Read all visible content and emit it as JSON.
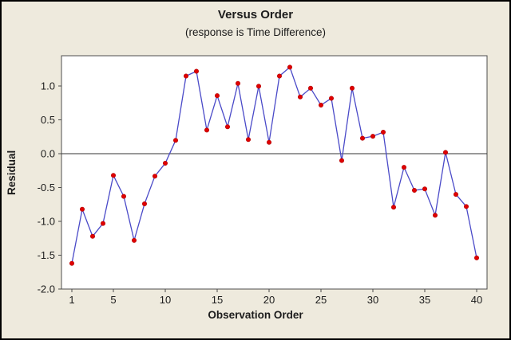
{
  "colors": {
    "page_bg": "#eeeadd",
    "plot_bg": "#ffffff",
    "plot_frame": "#4d4d4d",
    "series_line": "#4a4ac8",
    "marker_fill": "#e00000",
    "marker_edge": "#b00000",
    "reference_line": "#333333",
    "tick": "#4d4d4d",
    "text": "#1c1c1c",
    "outer_border": "#000000"
  },
  "chart_data": {
    "type": "line",
    "title": "Versus Order",
    "subtitle": "(response is Time Difference)",
    "xlabel": "Observation Order",
    "ylabel": "Residual",
    "x": [
      1,
      2,
      3,
      4,
      5,
      6,
      7,
      8,
      9,
      10,
      11,
      12,
      13,
      14,
      15,
      16,
      17,
      18,
      19,
      20,
      21,
      22,
      23,
      24,
      25,
      26,
      27,
      28,
      29,
      30,
      31,
      32,
      33,
      34,
      35,
      36,
      37,
      38,
      39,
      40
    ],
    "y": [
      -1.62,
      -0.82,
      -1.22,
      -1.03,
      -0.32,
      -0.63,
      -1.28,
      -0.74,
      -0.33,
      -0.14,
      0.2,
      1.15,
      1.22,
      0.35,
      0.86,
      0.4,
      1.04,
      0.21,
      1.0,
      0.17,
      1.15,
      1.28,
      0.84,
      0.97,
      0.72,
      0.82,
      -0.1,
      0.97,
      0.23,
      0.26,
      0.32,
      -0.79,
      -0.2,
      -0.54,
      -0.52,
      -0.91,
      0.02,
      -0.6,
      -0.78,
      -1.54
    ],
    "xlim": [
      0,
      41
    ],
    "ylim": [
      -2.0,
      1.45
    ],
    "x_tick_labels": [
      "1",
      "5",
      "10",
      "15",
      "20",
      "25",
      "30",
      "35",
      "40"
    ],
    "y_tick_labels": [
      "1.0",
      "0.5",
      "0.0",
      "-0.5",
      "-1.0",
      "-1.5",
      "-2.0"
    ],
    "reference_line_y": 0.0,
    "grid": false,
    "legend": false,
    "marker_style": "filled-circle"
  }
}
